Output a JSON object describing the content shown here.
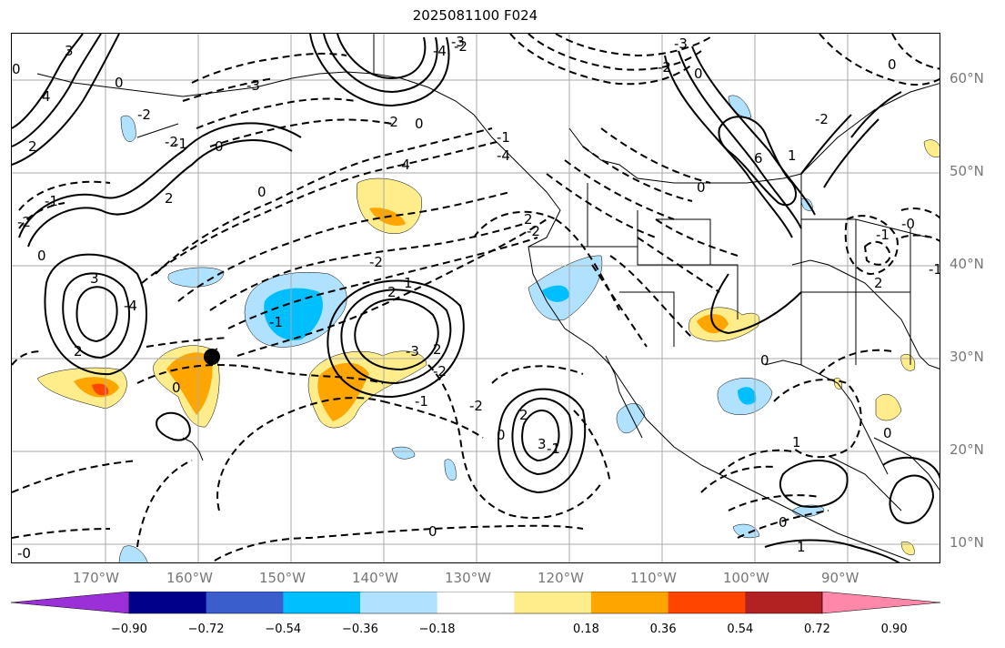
{
  "title": "2025081100 F024",
  "lat_labels": [
    "60°N",
    "50°N",
    "40°N",
    "30°N",
    "20°N",
    "10°N"
  ],
  "lon_labels": [
    "170°W",
    "160°W",
    "150°W",
    "140°W",
    "130°W",
    "120°W",
    "110°W",
    "100°W",
    "90°W"
  ],
  "colorbar": {
    "ticks": [
      "−0.90",
      "−0.72",
      "−0.54",
      "−0.36",
      "−0.18",
      "0.18",
      "0.36",
      "0.54",
      "0.72",
      "0.90"
    ],
    "colors": [
      "#9b30d9",
      "#00008b",
      "#3a5fcd",
      "#00bfff",
      "#b0e2ff",
      "#ffffff",
      "#ffec8b",
      "#ffa500",
      "#ff4500",
      "#b22222",
      "#ff88aa"
    ]
  },
  "contour_labels": {
    "l1": "-2",
    "l2": "-4",
    "l3": "-2",
    "l4": "0",
    "l5": "-3",
    "l6": "-2",
    "l7": "0",
    "l8": "-4",
    "l9": "-3",
    "l10": "-2",
    "l11": "-1",
    "l12": "2",
    "l13": "3",
    "l14": "2",
    "l15": "0",
    "l16": "-2",
    "l17": "1",
    "l18": "2",
    "l19": "2",
    "l20": "-1",
    "l21": "-2",
    "l22": "-4",
    "l23": "0",
    "l24": "-2",
    "l25": "-1",
    "l26": "-3",
    "l27": "2",
    "l28": "3",
    "l29": "-1",
    "l30": "0",
    "l31": "2",
    "l32": "0",
    "l33": "2",
    "l34": "3",
    "l35": "4",
    "l36": "0",
    "l37": "-2",
    "l38": "0",
    "l39": "-2",
    "l40": "-1",
    "l41": "0",
    "l42": "0",
    "l43": "1",
    "l44": "0",
    "l45": "6",
    "l46": "-1",
    "l47": "1",
    "l48": "0",
    "l49": "2",
    "l50": "-4",
    "l51": "-2",
    "l52": "-0",
    "l53": "-1",
    "l54": "-1",
    "l55": "0",
    "l56": "0",
    "l57": "-2",
    "l58": "-3",
    "l59": "0",
    "l60": "1",
    "l61": "-0"
  }
}
